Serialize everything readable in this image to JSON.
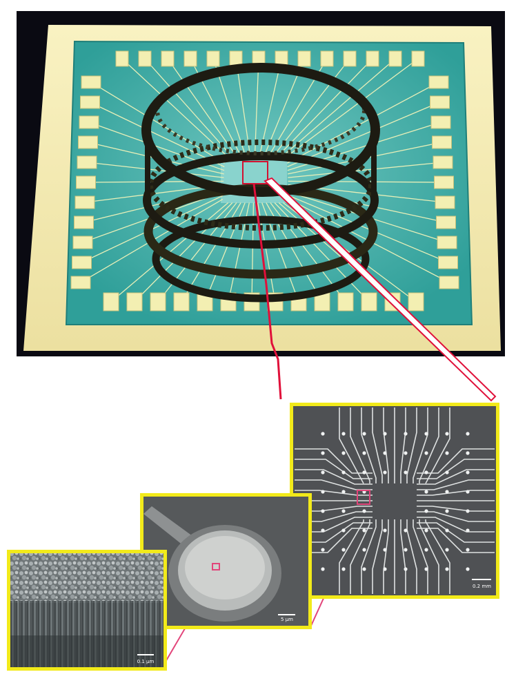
{
  "figure": {
    "colors": {
      "background": "#ffffff",
      "photo_background": "#0a0a12",
      "substrate": "#f6edb4",
      "chip_teal": "#2fa29c",
      "chip_inner": "#7ccac4",
      "pad": "#f3efb2",
      "ring": "#1d1b12",
      "callout_red": "#e0103a",
      "callout_magenta": "#e2457a",
      "frame_yellow": "#f2ea1a",
      "sem_gray": "#4f5154",
      "trace_white": "#dfe2e2",
      "disc_gray": "#c9cbc9",
      "texture_gray": "#8a9294"
    },
    "panels": [
      {
        "icon": "chip-carrier-photo"
      },
      {
        "icon": "electrode-grid-sem"
      },
      {
        "icon": "electrode-disc-sem"
      },
      {
        "icon": "surface-texture-sem"
      }
    ],
    "scale_bars": {
      "grid": "0.2 mm",
      "disc": "5 µm",
      "texture": "0.1 µm"
    }
  }
}
